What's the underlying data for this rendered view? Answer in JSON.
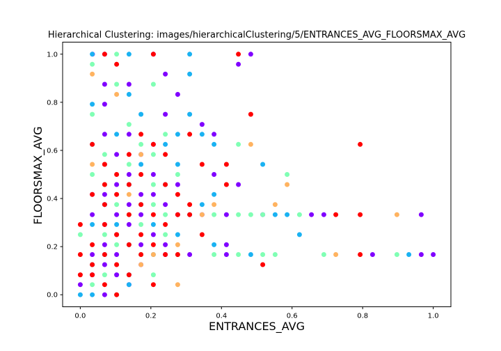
{
  "chart_data": {
    "type": "scatter",
    "title": "Hierarchical Clustering: images/hierarchicalClustering/5/ENTRANCES_AVG_FLOORSMAX_AVG",
    "xlabel": "ENTRANCES_AVG",
    "ylabel": "FLOORSMAX_AVG",
    "xlim": [
      -0.05,
      1.05
    ],
    "ylim": [
      -0.05,
      1.05
    ],
    "xticks": [
      "0.0",
      "0.2",
      "0.4",
      "0.6",
      "0.8",
      "1.0"
    ],
    "yticks": [
      "0.0",
      "0.2",
      "0.4",
      "0.6",
      "0.8",
      "1.0"
    ],
    "grid": false,
    "cluster_colors": [
      "#8000ff",
      "#1ab2f2",
      "#80ffb4",
      "#ffb360",
      "#ff0000"
    ],
    "series": [
      {
        "cluster": 0,
        "points": [
          [
            0.0345,
            1.0
          ],
          [
            0.069,
            1.0
          ],
          [
            0.207,
            1.0
          ],
          [
            0.483,
            1.0
          ],
          [
            0.448,
            0.958
          ],
          [
            0.069,
            0.875
          ],
          [
            0.138,
            0.875
          ],
          [
            0.241,
            0.917
          ],
          [
            0.276,
            0.833
          ],
          [
            0.069,
            0.792
          ],
          [
            0.241,
            0.75
          ],
          [
            0.345,
            0.708
          ],
          [
            0.379,
            0.667
          ],
          [
            0.069,
            0.667
          ],
          [
            0.138,
            0.667
          ],
          [
            0.207,
            0.625
          ],
          [
            0.103,
            0.583
          ],
          [
            0.172,
            0.583
          ],
          [
            0.069,
            0.542
          ],
          [
            0.138,
            0.5
          ],
          [
            0.207,
            0.5
          ],
          [
            0.276,
            0.458
          ],
          [
            0.103,
            0.458
          ],
          [
            0.034,
            0.417
          ],
          [
            0.069,
            0.417
          ],
          [
            0.172,
            0.417
          ],
          [
            0.207,
            0.417
          ],
          [
            0.241,
            0.375
          ],
          [
            0.138,
            0.375
          ],
          [
            0.069,
            0.375
          ],
          [
            0.034,
            0.333
          ],
          [
            0.103,
            0.333
          ],
          [
            0.172,
            0.333
          ],
          [
            0.276,
            0.333
          ],
          [
            0.345,
            0.333
          ],
          [
            0.414,
            0.333
          ],
          [
            0.655,
            0.333
          ],
          [
            0.69,
            0.333
          ],
          [
            0.966,
            0.333
          ],
          [
            0.069,
            0.292
          ],
          [
            0.138,
            0.292
          ],
          [
            0.207,
            0.25
          ],
          [
            0.103,
            0.25
          ],
          [
            0.172,
            0.208
          ],
          [
            0.241,
            0.208
          ],
          [
            0.069,
            0.208
          ],
          [
            0.034,
            0.167
          ],
          [
            0.103,
            0.167
          ],
          [
            0.241,
            0.167
          ],
          [
            0.31,
            0.167
          ],
          [
            0.414,
            0.167
          ],
          [
            0.828,
            0.167
          ],
          [
            0.966,
            0.167
          ],
          [
            1.0,
            0.167
          ],
          [
            0.069,
            0.125
          ],
          [
            0.172,
            0.125
          ],
          [
            0.103,
            0.083
          ],
          [
            0.138,
            0.042
          ],
          [
            0.069,
            0.0
          ],
          [
            0.0,
            0.042
          ],
          [
            0.034,
            0.083
          ],
          [
            0.414,
            0.208
          ],
          [
            0.448,
            0.458
          ],
          [
            0.517,
            0.333
          ],
          [
            0.379,
            0.5
          ]
        ]
      },
      {
        "cluster": 1,
        "points": [
          [
            0.034,
            1.0
          ],
          [
            0.138,
            1.0
          ],
          [
            0.31,
            1.0
          ],
          [
            0.31,
            0.917
          ],
          [
            0.138,
            0.833
          ],
          [
            0.034,
            0.792
          ],
          [
            0.172,
            0.75
          ],
          [
            0.31,
            0.75
          ],
          [
            0.276,
            0.667
          ],
          [
            0.345,
            0.667
          ],
          [
            0.103,
            0.667
          ],
          [
            0.034,
            0.625
          ],
          [
            0.241,
            0.625
          ],
          [
            0.379,
            0.625
          ],
          [
            0.172,
            0.542
          ],
          [
            0.276,
            0.542
          ],
          [
            0.517,
            0.542
          ],
          [
            0.138,
            0.458
          ],
          [
            0.241,
            0.458
          ],
          [
            0.069,
            0.375
          ],
          [
            0.172,
            0.375
          ],
          [
            0.345,
            0.375
          ],
          [
            0.034,
            0.292
          ],
          [
            0.103,
            0.292
          ],
          [
            0.207,
            0.292
          ],
          [
            0.276,
            0.25
          ],
          [
            0.621,
            0.25
          ],
          [
            0.138,
            0.208
          ],
          [
            0.379,
            0.208
          ],
          [
            0.069,
            0.167
          ],
          [
            0.207,
            0.167
          ],
          [
            0.483,
            0.167
          ],
          [
            0.931,
            0.167
          ],
          [
            0.034,
            0.125
          ],
          [
            0.138,
            0.083
          ],
          [
            0.0,
            0.0
          ],
          [
            0.138,
            0.042
          ],
          [
            0.034,
            0.0
          ],
          [
            0.552,
            0.333
          ],
          [
            0.586,
            0.333
          ],
          [
            0.379,
            0.417
          ],
          [
            0.31,
            0.333
          ]
        ]
      },
      {
        "cluster": 2,
        "points": [
          [
            0.034,
            0.958
          ],
          [
            0.103,
            1.0
          ],
          [
            0.207,
            0.875
          ],
          [
            0.103,
            0.875
          ],
          [
            0.034,
            0.75
          ],
          [
            0.138,
            0.708
          ],
          [
            0.241,
            0.667
          ],
          [
            0.172,
            0.625
          ],
          [
            0.069,
            0.583
          ],
          [
            0.207,
            0.583
          ],
          [
            0.448,
            0.625
          ],
          [
            0.586,
            0.5
          ],
          [
            0.034,
            0.5
          ],
          [
            0.138,
            0.542
          ],
          [
            0.276,
            0.5
          ],
          [
            0.069,
            0.458
          ],
          [
            0.207,
            0.458
          ],
          [
            0.103,
            0.375
          ],
          [
            0.207,
            0.375
          ],
          [
            0.138,
            0.333
          ],
          [
            0.241,
            0.333
          ],
          [
            0.379,
            0.333
          ],
          [
            0.448,
            0.333
          ],
          [
            0.483,
            0.333
          ],
          [
            0.517,
            0.333
          ],
          [
            0.621,
            0.333
          ],
          [
            0.172,
            0.292
          ],
          [
            0.069,
            0.25
          ],
          [
            0.241,
            0.25
          ],
          [
            0.103,
            0.208
          ],
          [
            0.172,
            0.167
          ],
          [
            0.276,
            0.167
          ],
          [
            0.379,
            0.167
          ],
          [
            0.448,
            0.167
          ],
          [
            0.517,
            0.167
          ],
          [
            0.69,
            0.167
          ],
          [
            0.897,
            0.167
          ],
          [
            0.069,
            0.083
          ],
          [
            0.207,
            0.083
          ],
          [
            0.034,
            0.042
          ],
          [
            0.0,
            0.25
          ],
          [
            0.103,
            0.0
          ],
          [
            0.552,
            0.167
          ]
        ]
      },
      {
        "cluster": 3,
        "points": [
          [
            0.034,
            0.917
          ],
          [
            0.103,
            0.833
          ],
          [
            0.483,
            0.625
          ],
          [
            0.586,
            0.458
          ],
          [
            0.069,
            0.542
          ],
          [
            0.172,
            0.583
          ],
          [
            0.138,
            0.417
          ],
          [
            0.379,
            0.375
          ],
          [
            0.552,
            0.375
          ],
          [
            0.345,
            0.333
          ],
          [
            0.897,
            0.333
          ],
          [
            0.103,
            0.25
          ],
          [
            0.276,
            0.208
          ],
          [
            0.207,
            0.167
          ],
          [
            0.724,
            0.167
          ],
          [
            0.276,
            0.042
          ],
          [
            0.172,
            0.125
          ],
          [
            0.034,
            0.542
          ]
        ]
      },
      {
        "cluster": 4,
        "points": [
          [
            0.069,
            1.0
          ],
          [
            0.207,
            1.0
          ],
          [
            0.448,
            1.0
          ],
          [
            0.103,
            0.958
          ],
          [
            0.483,
            0.75
          ],
          [
            0.172,
            0.667
          ],
          [
            0.31,
            0.667
          ],
          [
            0.034,
            0.625
          ],
          [
            0.207,
            0.625
          ],
          [
            0.793,
            0.625
          ],
          [
            0.138,
            0.583
          ],
          [
            0.241,
            0.583
          ],
          [
            0.069,
            0.542
          ],
          [
            0.345,
            0.542
          ],
          [
            0.414,
            0.542
          ],
          [
            0.103,
            0.5
          ],
          [
            0.172,
            0.5
          ],
          [
            0.069,
            0.458
          ],
          [
            0.241,
            0.458
          ],
          [
            0.414,
            0.458
          ],
          [
            0.138,
            0.458
          ],
          [
            0.034,
            0.417
          ],
          [
            0.103,
            0.417
          ],
          [
            0.276,
            0.417
          ],
          [
            0.069,
            0.375
          ],
          [
            0.172,
            0.375
          ],
          [
            0.31,
            0.375
          ],
          [
            0.138,
            0.333
          ],
          [
            0.207,
            0.333
          ],
          [
            0.276,
            0.333
          ],
          [
            0.31,
            0.333
          ],
          [
            0.724,
            0.333
          ],
          [
            0.793,
            0.333
          ],
          [
            0.0,
            0.292
          ],
          [
            0.069,
            0.292
          ],
          [
            0.241,
            0.292
          ],
          [
            0.103,
            0.25
          ],
          [
            0.172,
            0.25
          ],
          [
            0.034,
            0.208
          ],
          [
            0.138,
            0.208
          ],
          [
            0.207,
            0.208
          ],
          [
            0.0,
            0.167
          ],
          [
            0.069,
            0.167
          ],
          [
            0.172,
            0.167
          ],
          [
            0.241,
            0.167
          ],
          [
            0.276,
            0.167
          ],
          [
            0.793,
            0.167
          ],
          [
            0.517,
            0.125
          ],
          [
            0.103,
            0.125
          ],
          [
            0.034,
            0.083
          ],
          [
            0.138,
            0.083
          ],
          [
            0.0,
            0.083
          ],
          [
            0.069,
            0.042
          ],
          [
            0.103,
            0.0
          ],
          [
            0.345,
            0.25
          ],
          [
            0.207,
            0.042
          ],
          [
            0.034,
            0.125
          ]
        ]
      }
    ]
  }
}
